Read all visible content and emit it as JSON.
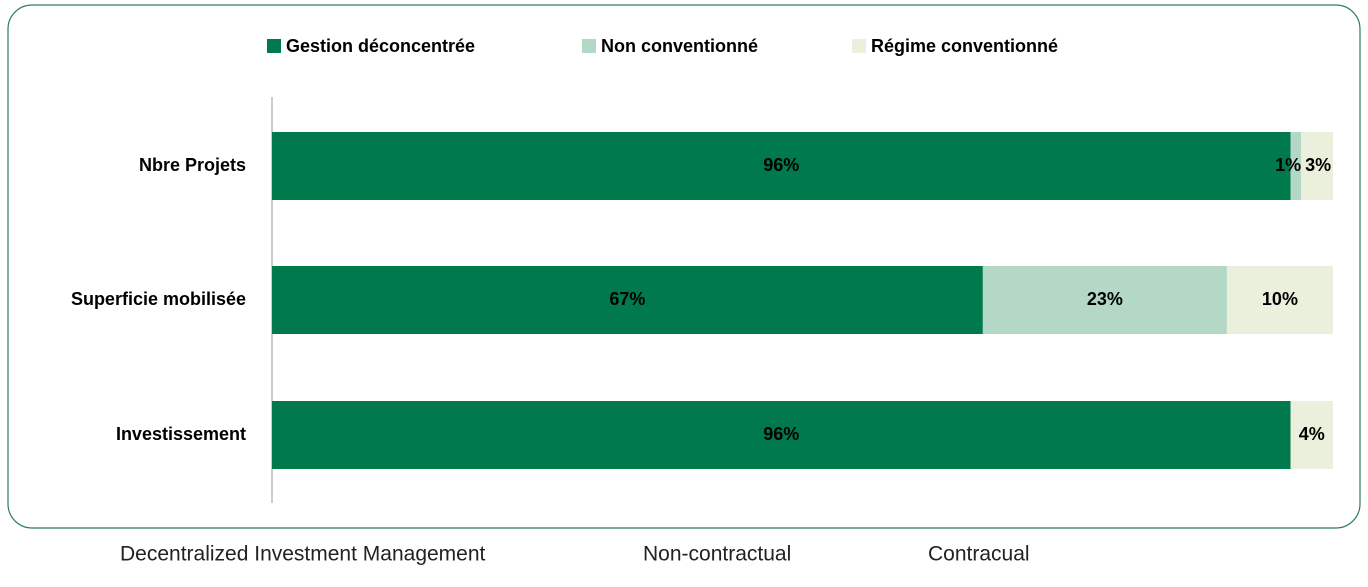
{
  "chart_data": {
    "type": "stacked-bar-horizontal",
    "categories": [
      "Nbre Projets",
      "Superficie mobilisée",
      "Investissement"
    ],
    "series": [
      {
        "name": "Gestion déconcentrée",
        "color": "#007a4d",
        "values": [
          96,
          67,
          96
        ],
        "value_labels": [
          "96%",
          "67%",
          "96%"
        ]
      },
      {
        "name": "Non conventionné",
        "color": "#b3d9c6",
        "values": [
          1,
          23,
          null
        ],
        "value_labels": [
          "1%",
          "23%",
          null
        ]
      },
      {
        "name": "Régime conventionné",
        "color": "#ebf0dc",
        "values": [
          3,
          10,
          4
        ],
        "value_labels": [
          "3%",
          "10%",
          "4%"
        ]
      }
    ],
    "xlim": [
      0,
      100
    ],
    "legend": "top",
    "captions": [
      "Decentralized Investment Management",
      "Non-contractual",
      "Contracual"
    ]
  }
}
